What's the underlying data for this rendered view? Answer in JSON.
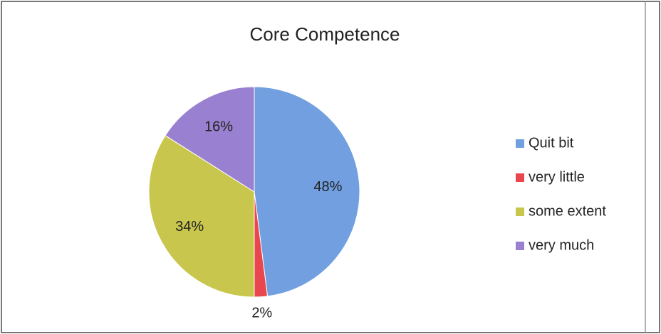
{
  "chart_data": {
    "type": "pie",
    "title": "Core Competence",
    "categories": [
      "Quit bit",
      "very little",
      "some extent",
      "very much"
    ],
    "values": [
      48,
      2,
      34,
      16
    ],
    "value_labels": [
      "48%",
      "2%",
      "34%",
      "16%"
    ],
    "colors": [
      "#719fe0",
      "#e8474f",
      "#c8c64c",
      "#9a80d0"
    ],
    "legend": "right"
  }
}
